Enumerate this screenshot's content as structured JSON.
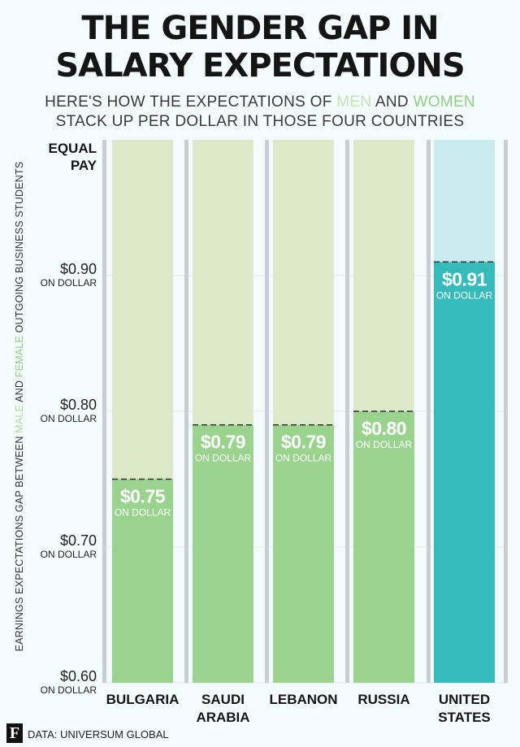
{
  "title_line1": "THE GENDER GAP IN",
  "title_line2": "SALARY EXPECTATIONS",
  "subtitle": {
    "l1_a": "HERE'S HOW THE EXPECTATIONS OF ",
    "l1_men": "MEN",
    "l1_and": " AND ",
    "l1_women": "WOMEN",
    "l2": "STACK UP PER DOLLAR IN THOSE FOUR COUNTRIES"
  },
  "ylabel": {
    "part1": "EARNINGS EXPECTATIONS GAP BETWEEN ",
    "male": "MALE",
    "and": " AND ",
    "female": "FEMALE",
    "part2": " OUTGOING BUSINESS STUDENTS"
  },
  "source": "DATA: UNIVERSUM GLOBAL",
  "logo_letter": "F",
  "colors": {
    "bg": "#f4fbfd",
    "men": "#dbe9c8",
    "women": "#9ad38e",
    "us_men": "#c8ecee",
    "us_women": "#36bbbb",
    "separator": "#c9ced6"
  },
  "chart_data": {
    "type": "bar",
    "categories": [
      [
        "BULGARIA"
      ],
      [
        "SAUDI",
        "ARABIA"
      ],
      [
        "LEBANON"
      ],
      [
        "RUSSIA"
      ],
      [
        "UNITED",
        "STATES"
      ]
    ],
    "values": [
      0.75,
      0.79,
      0.79,
      0.8,
      0.91
    ],
    "value_labels": [
      "$0.75",
      "$0.79",
      "$0.79",
      "$0.80",
      "$0.91"
    ],
    "value_sublabel": "ON DOLLAR",
    "highlight_index": 4,
    "ylim": [
      0.6,
      1.0
    ],
    "yticks": [
      {
        "value": 1.0,
        "label": [
          "EQUAL",
          "PAY"
        ],
        "sub": ""
      },
      {
        "value": 0.9,
        "label": [
          "$0.90"
        ],
        "sub": "ON DOLLAR"
      },
      {
        "value": 0.8,
        "label": [
          "$0.80"
        ],
        "sub": "ON DOLLAR"
      },
      {
        "value": 0.7,
        "label": [
          "$0.70"
        ],
        "sub": "ON DOLLAR"
      },
      {
        "value": 0.6,
        "label": [
          "$0.60"
        ],
        "sub": "ON DOLLAR"
      }
    ],
    "grid": true
  }
}
